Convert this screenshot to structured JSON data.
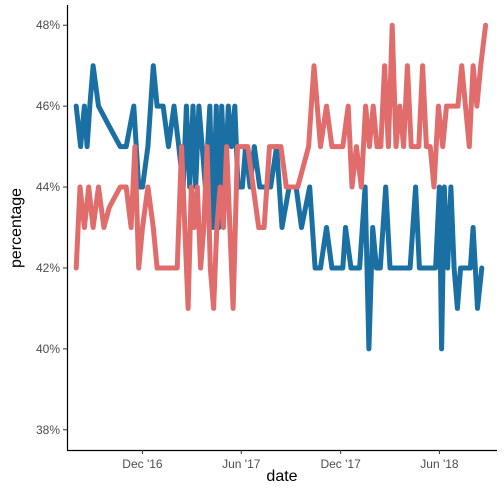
{
  "chart_data": {
    "type": "line",
    "xlabel": "date",
    "ylabel": "percentage",
    "x_ticks": [
      {
        "date": "2016-12-01",
        "label": "Dec '16"
      },
      {
        "date": "2017-06-01",
        "label": "Jun '17"
      },
      {
        "date": "2017-12-01",
        "label": "Dec '17"
      },
      {
        "date": "2018-06-01",
        "label": "Jun '18"
      }
    ],
    "y_ticks": [
      {
        "value": 38,
        "label": "38%"
      },
      {
        "value": 40,
        "label": "40%"
      },
      {
        "value": 42,
        "label": "42%"
      },
      {
        "value": 44,
        "label": "44%"
      },
      {
        "value": 46,
        "label": "46%"
      },
      {
        "value": 48,
        "label": "48%"
      }
    ],
    "xlim": [
      "2016-07-15",
      "2018-09-15"
    ],
    "ylim": [
      37.5,
      48.5
    ],
    "grid": false,
    "legend": "none",
    "series": [
      {
        "color": "#1a6fa3",
        "points": [
          [
            "2016-08-01",
            46
          ],
          [
            "2016-08-09",
            45
          ],
          [
            "2016-08-16",
            46
          ],
          [
            "2016-08-21",
            45
          ],
          [
            "2016-08-26",
            46
          ],
          [
            "2016-09-01",
            47
          ],
          [
            "2016-09-11",
            46
          ],
          [
            "2016-10-01",
            45.5
          ],
          [
            "2016-10-21",
            45
          ],
          [
            "2016-11-01",
            45
          ],
          [
            "2016-11-15",
            46
          ],
          [
            "2016-11-24",
            44
          ],
          [
            "2016-12-01",
            44
          ],
          [
            "2016-12-11",
            45
          ],
          [
            "2016-12-21",
            47
          ],
          [
            "2016-12-28",
            46
          ],
          [
            "2017-01-08",
            46
          ],
          [
            "2017-01-18",
            45
          ],
          [
            "2017-01-28",
            46
          ],
          [
            "2017-02-06",
            45
          ],
          [
            "2017-02-14",
            44
          ],
          [
            "2017-02-20",
            46
          ],
          [
            "2017-02-26",
            44
          ],
          [
            "2017-03-04",
            46
          ],
          [
            "2017-03-09",
            44
          ],
          [
            "2017-03-15",
            46
          ],
          [
            "2017-03-21",
            45
          ],
          [
            "2017-03-27",
            44
          ],
          [
            "2017-04-04",
            46
          ],
          [
            "2017-04-10",
            43
          ],
          [
            "2017-04-16",
            46
          ],
          [
            "2017-04-21",
            43
          ],
          [
            "2017-04-26",
            46
          ],
          [
            "2017-05-02",
            44
          ],
          [
            "2017-05-08",
            46
          ],
          [
            "2017-05-14",
            45
          ],
          [
            "2017-05-20",
            46
          ],
          [
            "2017-05-26",
            44
          ],
          [
            "2017-06-03",
            44
          ],
          [
            "2017-06-09",
            45
          ],
          [
            "2017-06-17",
            44
          ],
          [
            "2017-06-25",
            45
          ],
          [
            "2017-07-05",
            44
          ],
          [
            "2017-07-15",
            44
          ],
          [
            "2017-07-25",
            44
          ],
          [
            "2017-08-05",
            45
          ],
          [
            "2017-08-15",
            43
          ],
          [
            "2017-08-28",
            44
          ],
          [
            "2017-09-10",
            44
          ],
          [
            "2017-09-20",
            43
          ],
          [
            "2017-10-05",
            44
          ],
          [
            "2017-10-15",
            42
          ],
          [
            "2017-10-25",
            42
          ],
          [
            "2017-11-05",
            43
          ],
          [
            "2017-11-15",
            42
          ],
          [
            "2017-11-25",
            42
          ],
          [
            "2017-12-05",
            42
          ],
          [
            "2017-12-10",
            43
          ],
          [
            "2017-12-20",
            42
          ],
          [
            "2018-01-05",
            42
          ],
          [
            "2018-01-15",
            44
          ],
          [
            "2018-01-22",
            40
          ],
          [
            "2018-01-29",
            43
          ],
          [
            "2018-02-05",
            42
          ],
          [
            "2018-02-12",
            42
          ],
          [
            "2018-02-22",
            44
          ],
          [
            "2018-03-02",
            42
          ],
          [
            "2018-03-12",
            42
          ],
          [
            "2018-03-20",
            42
          ],
          [
            "2018-03-28",
            42
          ],
          [
            "2018-04-08",
            42
          ],
          [
            "2018-04-18",
            44
          ],
          [
            "2018-04-25",
            42
          ],
          [
            "2018-05-05",
            42
          ],
          [
            "2018-05-15",
            42
          ],
          [
            "2018-05-25",
            42
          ],
          [
            "2018-06-01",
            44
          ],
          [
            "2018-06-05",
            40
          ],
          [
            "2018-06-10",
            44
          ],
          [
            "2018-06-16",
            42
          ],
          [
            "2018-06-22",
            44
          ],
          [
            "2018-06-28",
            42
          ],
          [
            "2018-07-04",
            41
          ],
          [
            "2018-07-10",
            42
          ],
          [
            "2018-07-20",
            42
          ],
          [
            "2018-07-28",
            42
          ],
          [
            "2018-08-02",
            43
          ],
          [
            "2018-08-10",
            41
          ],
          [
            "2018-08-18",
            42
          ]
        ]
      },
      {
        "color": "#e06c6c",
        "points": [
          [
            "2016-08-01",
            42
          ],
          [
            "2016-08-08",
            44
          ],
          [
            "2016-08-16",
            43
          ],
          [
            "2016-08-24",
            44
          ],
          [
            "2016-09-01",
            43
          ],
          [
            "2016-09-11",
            44
          ],
          [
            "2016-09-21",
            43
          ],
          [
            "2016-10-01",
            43.5
          ],
          [
            "2016-10-21",
            44
          ],
          [
            "2016-11-01",
            44
          ],
          [
            "2016-11-10",
            43
          ],
          [
            "2016-11-17",
            45
          ],
          [
            "2016-11-24",
            42
          ],
          [
            "2016-12-01",
            43
          ],
          [
            "2016-12-11",
            44
          ],
          [
            "2016-12-21",
            43
          ],
          [
            "2016-12-28",
            42
          ],
          [
            "2017-01-11",
            42
          ],
          [
            "2017-01-25",
            42
          ],
          [
            "2017-02-03",
            42
          ],
          [
            "2017-02-11",
            45
          ],
          [
            "2017-02-17",
            43
          ],
          [
            "2017-02-23",
            41
          ],
          [
            "2017-03-01",
            44
          ],
          [
            "2017-03-06",
            43
          ],
          [
            "2017-03-12",
            44
          ],
          [
            "2017-03-18",
            42
          ],
          [
            "2017-03-24",
            43
          ],
          [
            "2017-03-30",
            45
          ],
          [
            "2017-04-05",
            42
          ],
          [
            "2017-04-11",
            41
          ],
          [
            "2017-04-17",
            43
          ],
          [
            "2017-04-23",
            44
          ],
          [
            "2017-04-29",
            43
          ],
          [
            "2017-05-05",
            45
          ],
          [
            "2017-05-11",
            43
          ],
          [
            "2017-05-17",
            41
          ],
          [
            "2017-05-25",
            45
          ],
          [
            "2017-06-03",
            45
          ],
          [
            "2017-06-13",
            45
          ],
          [
            "2017-06-23",
            44
          ],
          [
            "2017-07-03",
            43
          ],
          [
            "2017-07-13",
            43
          ],
          [
            "2017-07-23",
            45
          ],
          [
            "2017-08-03",
            45
          ],
          [
            "2017-08-13",
            45
          ],
          [
            "2017-08-23",
            44
          ],
          [
            "2017-09-03",
            44
          ],
          [
            "2017-09-13",
            44
          ],
          [
            "2017-09-23",
            44.5
          ],
          [
            "2017-10-03",
            45
          ],
          [
            "2017-10-13",
            47
          ],
          [
            "2017-10-25",
            45
          ],
          [
            "2017-11-05",
            46
          ],
          [
            "2017-11-15",
            45
          ],
          [
            "2017-11-25",
            45
          ],
          [
            "2017-12-05",
            45
          ],
          [
            "2017-12-15",
            46
          ],
          [
            "2017-12-22",
            44
          ],
          [
            "2017-12-30",
            45
          ],
          [
            "2018-01-08",
            44
          ],
          [
            "2018-01-16",
            46
          ],
          [
            "2018-01-23",
            45
          ],
          [
            "2018-01-30",
            46
          ],
          [
            "2018-02-06",
            45
          ],
          [
            "2018-02-13",
            45
          ],
          [
            "2018-02-20",
            47
          ],
          [
            "2018-02-27",
            45
          ],
          [
            "2018-03-06",
            48
          ],
          [
            "2018-03-13",
            45
          ],
          [
            "2018-03-20",
            46
          ],
          [
            "2018-03-27",
            45
          ],
          [
            "2018-04-03",
            47
          ],
          [
            "2018-04-10",
            45
          ],
          [
            "2018-04-17",
            45
          ],
          [
            "2018-04-24",
            45
          ],
          [
            "2018-05-01",
            47
          ],
          [
            "2018-05-08",
            45
          ],
          [
            "2018-05-15",
            45
          ],
          [
            "2018-05-22",
            44
          ],
          [
            "2018-05-30",
            46
          ],
          [
            "2018-06-07",
            45
          ],
          [
            "2018-06-14",
            46
          ],
          [
            "2018-06-21",
            46
          ],
          [
            "2018-06-28",
            46
          ],
          [
            "2018-07-05",
            46
          ],
          [
            "2018-07-12",
            47
          ],
          [
            "2018-07-19",
            46
          ],
          [
            "2018-07-26",
            45
          ],
          [
            "2018-08-02",
            47
          ],
          [
            "2018-08-09",
            46
          ],
          [
            "2018-08-16",
            47
          ],
          [
            "2018-08-25",
            48
          ]
        ]
      }
    ]
  }
}
